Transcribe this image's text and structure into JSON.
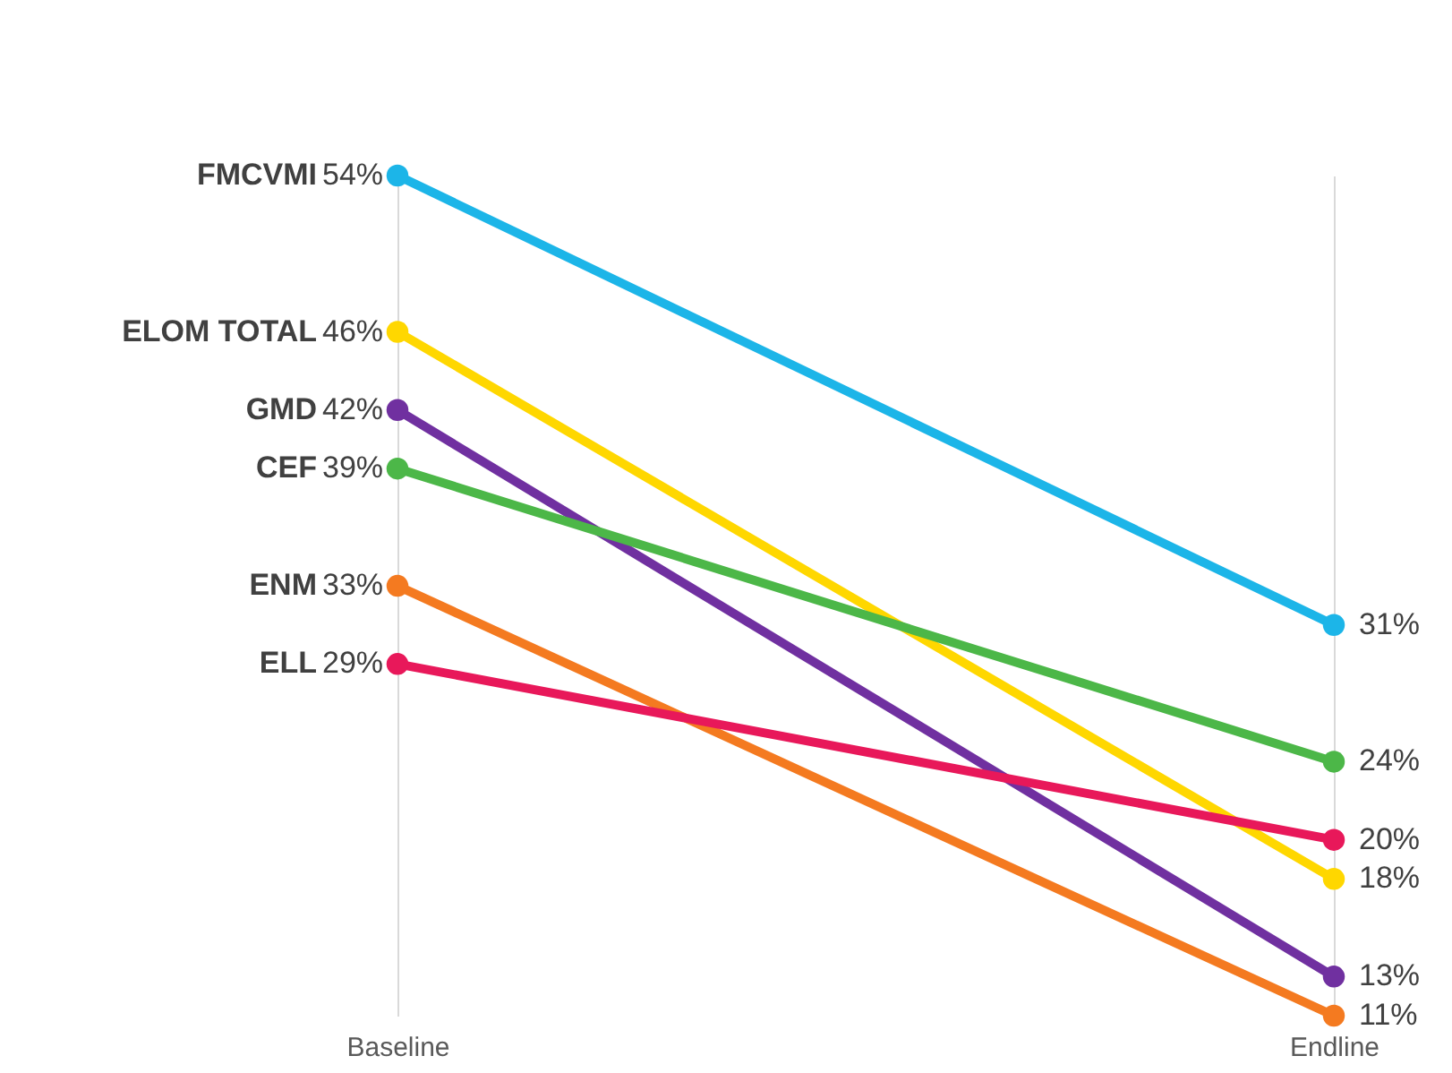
{
  "chart_data": {
    "type": "line",
    "categories": [
      "Baseline",
      "Endline"
    ],
    "grid": "x",
    "legend": false,
    "marker": "circle",
    "line_style": "solid",
    "series": [
      {
        "name": "FMCVMI",
        "color": "#1cb5e8",
        "values": [
          54,
          31
        ],
        "value_labels": [
          "54%",
          "31%"
        ]
      },
      {
        "name": "ELOM TOTAL",
        "color": "#ffd700",
        "values": [
          46,
          18
        ],
        "value_labels": [
          "46%",
          "18%"
        ]
      },
      {
        "name": "GMD",
        "color": "#7030a0",
        "values": [
          42,
          13
        ],
        "value_labels": [
          "42%",
          "13%"
        ]
      },
      {
        "name": "CEF",
        "color": "#4cb748",
        "values": [
          39,
          24
        ],
        "value_labels": [
          "39%",
          "24%"
        ]
      },
      {
        "name": "ENM",
        "color": "#f47a20",
        "values": [
          33,
          11
        ],
        "value_labels": [
          "33%",
          "11%"
        ]
      },
      {
        "name": "ELL",
        "color": "#e8185a",
        "values": [
          29,
          20
        ],
        "value_labels": [
          "29%",
          "20%"
        ]
      }
    ]
  }
}
